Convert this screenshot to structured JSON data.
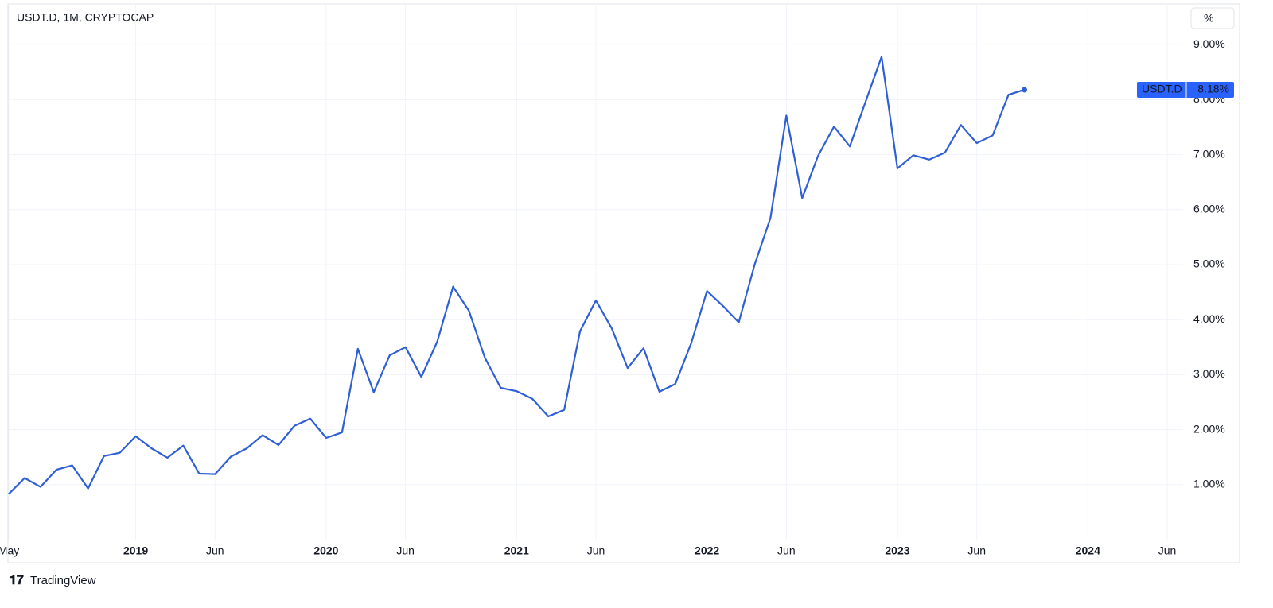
{
  "chart_data": {
    "type": "line",
    "title": "USDT.D, 1M, CRYPTOCAP",
    "unit_button": "%",
    "brand": "TradingView",
    "x": [
      "2018-05",
      "2018-06",
      "2018-07",
      "2018-08",
      "2018-09",
      "2018-10",
      "2018-11",
      "2018-12",
      "2019-01",
      "2019-02",
      "2019-03",
      "2019-04",
      "2019-05",
      "2019-06",
      "2019-07",
      "2019-08",
      "2019-09",
      "2019-10",
      "2019-11",
      "2019-12",
      "2020-01",
      "2020-02",
      "2020-03",
      "2020-04",
      "2020-05",
      "2020-06",
      "2020-07",
      "2020-08",
      "2020-09",
      "2020-10",
      "2020-11",
      "2020-12",
      "2021-01",
      "2021-02",
      "2021-03",
      "2021-04",
      "2021-05",
      "2021-06",
      "2021-07",
      "2021-08",
      "2021-09",
      "2021-10",
      "2021-11",
      "2021-12",
      "2022-01",
      "2022-02",
      "2022-03",
      "2022-04",
      "2022-05",
      "2022-06",
      "2022-07",
      "2022-08",
      "2022-09",
      "2022-10",
      "2022-11",
      "2022-12",
      "2023-01",
      "2023-02",
      "2023-03",
      "2023-04",
      "2023-05",
      "2023-06",
      "2023-07",
      "2023-08",
      "2023-09"
    ],
    "series": [
      {
        "name": "USDT.D",
        "color": "#2e5fd6",
        "last_value_label": "8.18%",
        "values": [
          0.83,
          1.12,
          0.96,
          1.27,
          1.35,
          0.93,
          1.52,
          1.58,
          1.88,
          1.66,
          1.49,
          1.71,
          1.2,
          1.19,
          1.51,
          1.66,
          1.9,
          1.72,
          2.07,
          2.2,
          1.85,
          1.95,
          3.47,
          2.68,
          3.35,
          3.5,
          2.96,
          3.6,
          4.6,
          4.16,
          3.31,
          2.76,
          2.7,
          2.56,
          2.24,
          2.36,
          3.79,
          4.35,
          3.84,
          3.12,
          3.48,
          2.69,
          2.83,
          3.57,
          4.52,
          4.25,
          3.95,
          5.0,
          5.85,
          7.71,
          6.21,
          6.98,
          7.51,
          7.15,
          7.97,
          8.78,
          6.75,
          6.99,
          6.91,
          7.04,
          7.54,
          7.21,
          7.35,
          8.09,
          8.18
        ]
      }
    ],
    "xlim": [
      "2018-05",
      "2024-07"
    ],
    "xticks": [
      {
        "value": "2018-05",
        "label": "May"
      },
      {
        "value": "2019-01",
        "label": "2019"
      },
      {
        "value": "2019-06",
        "label": "Jun"
      },
      {
        "value": "2020-01",
        "label": "2020"
      },
      {
        "value": "2020-06",
        "label": "Jun"
      },
      {
        "value": "2021-01",
        "label": "2021"
      },
      {
        "value": "2021-06",
        "label": "Jun"
      },
      {
        "value": "2022-01",
        "label": "2022"
      },
      {
        "value": "2022-06",
        "label": "Jun"
      },
      {
        "value": "2023-01",
        "label": "2023"
      },
      {
        "value": "2023-06",
        "label": "Jun"
      },
      {
        "value": "2024-01",
        "label": "2024"
      },
      {
        "value": "2024-06",
        "label": "Jun"
      }
    ],
    "ylim": [
      0,
      9.74
    ],
    "yticks": [
      {
        "value": 1,
        "label": "1.00%"
      },
      {
        "value": 2,
        "label": "2.00%"
      },
      {
        "value": 3,
        "label": "3.00%"
      },
      {
        "value": 4,
        "label": "4.00%"
      },
      {
        "value": 5,
        "label": "5.00%"
      },
      {
        "value": 6,
        "label": "6.00%"
      },
      {
        "value": 7,
        "label": "7.00%"
      },
      {
        "value": 8,
        "label": "8.00%"
      },
      {
        "value": 9,
        "label": "9.00%"
      }
    ],
    "grid": true
  }
}
